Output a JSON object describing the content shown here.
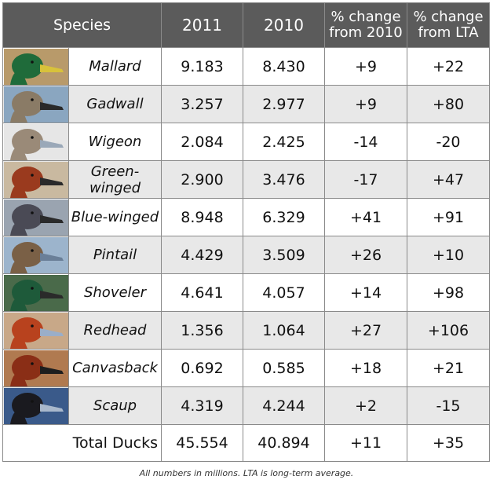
{
  "header": {
    "species": "Species",
    "year_2011": "2011",
    "year_2010": "2010",
    "pct_2010": [
      "% change",
      "from 2010"
    ],
    "pct_lta": [
      "% change",
      "from LTA"
    ]
  },
  "rows": [
    {
      "species": "Mallard",
      "icon": "mallard-duck-head-icon",
      "v2011": "9.183",
      "v2010": "8.430",
      "pct2010": "+9",
      "pctlta": "+22",
      "colors": {
        "head": "#1f6b3a",
        "bill": "#d8c23a",
        "bg": "#b89a6a"
      }
    },
    {
      "species": "Gadwall",
      "icon": "gadwall-duck-head-icon",
      "v2011": "3.257",
      "v2010": "2.977",
      "pct2010": "+9",
      "pctlta": "+80",
      "colors": {
        "head": "#8a7b66",
        "bill": "#2a2a2a",
        "bg": "#8aa6c0"
      }
    },
    {
      "species": "Wigeon",
      "icon": "wigeon-duck-head-icon",
      "v2011": "2.084",
      "v2010": "2.425",
      "pct2010": "-14",
      "pctlta": "-20",
      "colors": {
        "head": "#9a8a78",
        "bill": "#9aa8b8",
        "bg": "#e6e6e6"
      }
    },
    {
      "species": "Green-winged",
      "icon": "green-winged-teal-head-icon",
      "v2011": "2.900",
      "v2010": "3.476",
      "pct2010": "-17",
      "pctlta": "+47",
      "colors": {
        "head": "#9a3a1e",
        "bill": "#2a2a2a",
        "bg": "#c9b9a0"
      }
    },
    {
      "species": "Blue-winged",
      "icon": "blue-winged-teal-head-icon",
      "v2011": "8.948",
      "v2010": "6.329",
      "pct2010": "+41",
      "pctlta": "+91",
      "colors": {
        "head": "#4a4a55",
        "bill": "#2a2a2a",
        "bg": "#9aa4b0"
      }
    },
    {
      "species": "Pintail",
      "icon": "pintail-duck-head-icon",
      "v2011": "4.429",
      "v2010": "3.509",
      "pct2010": "+26",
      "pctlta": "+10",
      "colors": {
        "head": "#7a6046",
        "bill": "#6a7f98",
        "bg": "#9cb4cc"
      }
    },
    {
      "species": "Shoveler",
      "icon": "shoveler-duck-head-icon",
      "v2011": "4.641",
      "v2010": "4.057",
      "pct2010": "+14",
      "pctlta": "+98",
      "colors": {
        "head": "#1e5a3a",
        "bill": "#2a2a2a",
        "bg": "#4a6a4a"
      }
    },
    {
      "species": "Redhead",
      "icon": "redhead-duck-head-icon",
      "v2011": "1.356",
      "v2010": "1.064",
      "pct2010": "+27",
      "pctlta": "+106",
      "colors": {
        "head": "#b8421e",
        "bill": "#9aaec8",
        "bg": "#c8a888"
      }
    },
    {
      "species": "Canvasback",
      "icon": "canvasback-duck-head-icon",
      "v2011": "0.692",
      "v2010": "0.585",
      "pct2010": "+18",
      "pctlta": "+21",
      "colors": {
        "head": "#8a2e16",
        "bill": "#1e1e1e",
        "bg": "#b07a50"
      }
    },
    {
      "species": "Scaup",
      "icon": "scaup-duck-head-icon",
      "v2011": "4.319",
      "v2010": "4.244",
      "pct2010": "+2",
      "pctlta": "-15",
      "colors": {
        "head": "#1a1a1f",
        "bill": "#a8b8cc",
        "bg": "#3a5a8a"
      }
    }
  ],
  "total": {
    "label": "Total Ducks",
    "v2011": "45.554",
    "v2010": "40.894",
    "pct2010": "+11",
    "pctlta": "+35"
  },
  "footnote": "All numbers in millions.  LTA is long-term average."
}
